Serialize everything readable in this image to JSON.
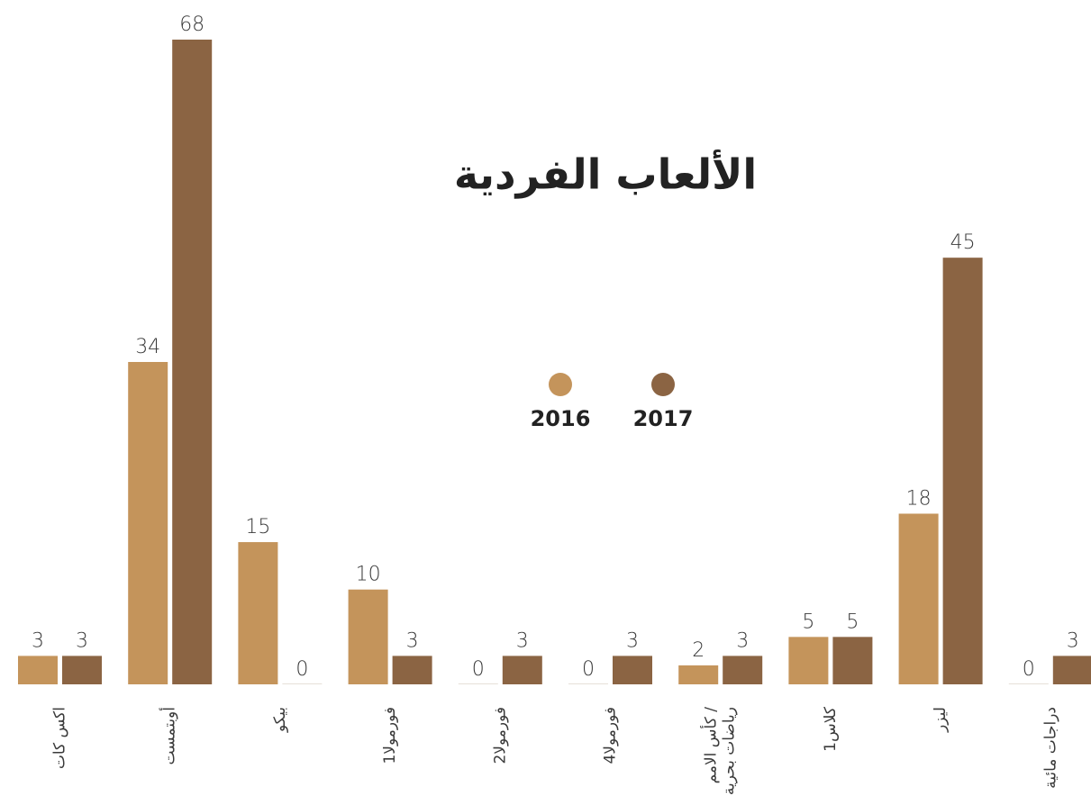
{
  "chart_data": {
    "type": "bar",
    "title": "الألعاب الفردية",
    "categories": [
      [
        "اكس كات"
      ],
      [
        "أوبتمست"
      ],
      [
        "بيكو"
      ],
      [
        "فورمولا1"
      ],
      [
        "فورمولا2"
      ],
      [
        "فورمولا4"
      ],
      [
        "كأس الامم /",
        "رياضات بحرية"
      ],
      [
        "كلاس1"
      ],
      [
        "ليزر"
      ],
      [
        "دراجات مائية"
      ]
    ],
    "series": [
      {
        "name": "2016",
        "color": "#c4945b",
        "values": [
          3,
          34,
          15,
          10,
          0,
          0,
          2,
          5,
          18,
          0
        ]
      },
      {
        "name": "2017",
        "color": "#8b6443",
        "values": [
          3,
          68,
          0,
          3,
          3,
          3,
          3,
          5,
          45,
          3
        ]
      }
    ]
  }
}
